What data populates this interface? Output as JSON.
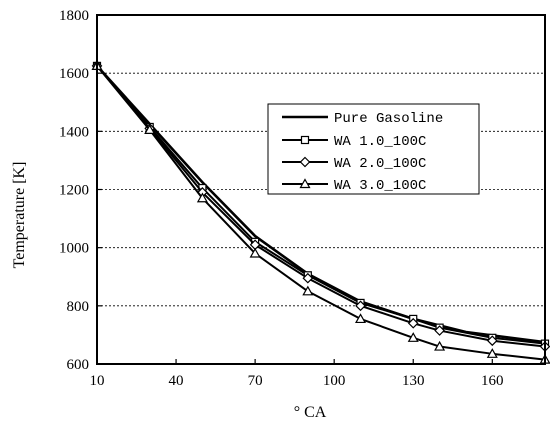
{
  "chart_data": {
    "type": "line",
    "xlabel": "° CA",
    "ylabel": "Temperature [K]",
    "xlim": [
      10,
      180
    ],
    "ylim": [
      600,
      1800
    ],
    "xticks": [
      10,
      40,
      70,
      100,
      130,
      160
    ],
    "yticks": [
      600,
      800,
      1000,
      1200,
      1400,
      1600,
      1800
    ],
    "grid": "horizontal dotted",
    "legend_position": "upper-right",
    "series": [
      {
        "name": "Pure Gasoline",
        "marker": "none",
        "x": [
          10,
          30,
          50,
          70,
          90,
          110,
          130,
          150,
          180
        ],
        "y": [
          1625,
          1425,
          1225,
          1040,
          910,
          815,
          755,
          710,
          675
        ]
      },
      {
        "name": "WA 1.0_100C",
        "marker": "square",
        "x": [
          10,
          30,
          50,
          70,
          90,
          110,
          130,
          140,
          160,
          180
        ],
        "y": [
          1625,
          1415,
          1205,
          1020,
          905,
          810,
          755,
          725,
          690,
          670
        ]
      },
      {
        "name": "WA 2.0_100C",
        "marker": "diamond",
        "x": [
          10,
          30,
          50,
          70,
          90,
          110,
          130,
          140,
          160,
          180
        ],
        "y": [
          1625,
          1410,
          1190,
          1010,
          895,
          800,
          740,
          715,
          680,
          660
        ]
      },
      {
        "name": "WA 3.0_100C",
        "marker": "triangle",
        "x": [
          10,
          30,
          50,
          70,
          90,
          110,
          130,
          140,
          160,
          180
        ],
        "y": [
          1625,
          1405,
          1170,
          980,
          850,
          755,
          690,
          660,
          635,
          615
        ]
      }
    ]
  }
}
